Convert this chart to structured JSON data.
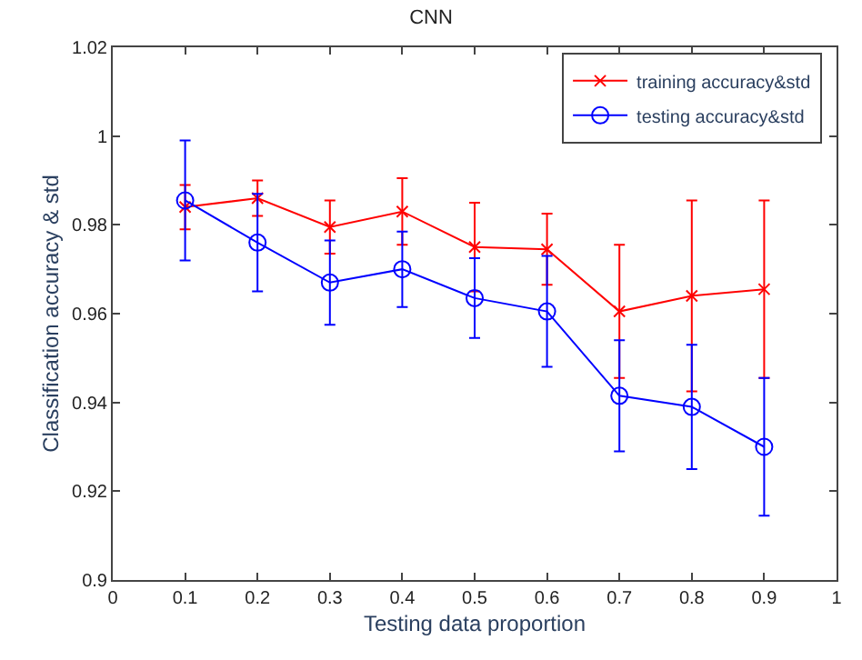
{
  "chart_data": {
    "type": "line",
    "title": "CNN",
    "xlabel": "Testing data proportion",
    "ylabel": "Classification accuracy & std",
    "x": [
      0.1,
      0.2,
      0.3,
      0.4,
      0.5,
      0.6,
      0.7,
      0.8,
      0.9
    ],
    "series": [
      {
        "name": "training accuracy&std",
        "color": "#ff0000",
        "marker": "cross",
        "values": [
          0.984,
          0.986,
          0.9795,
          0.983,
          0.975,
          0.9745,
          0.9605,
          0.964,
          0.9655
        ],
        "errors": [
          0.005,
          0.004,
          0.006,
          0.0075,
          0.01,
          0.008,
          0.015,
          0.0215,
          0.02
        ]
      },
      {
        "name": "testing accuracy&std",
        "color": "#0000ff",
        "marker": "circle",
        "values": [
          0.9855,
          0.976,
          0.967,
          0.97,
          0.9635,
          0.9605,
          0.9415,
          0.939,
          0.93
        ],
        "errors": [
          0.0135,
          0.011,
          0.0095,
          0.0085,
          0.009,
          0.0125,
          0.0125,
          0.014,
          0.0155
        ]
      }
    ],
    "xlim": [
      0,
      1
    ],
    "xticks": [
      0,
      0.1,
      0.2,
      0.3,
      0.4,
      0.5,
      0.6,
      0.7,
      0.8,
      0.9,
      1
    ],
    "ylim": [
      0.9,
      1.02
    ],
    "yticks": [
      0.9,
      0.92,
      0.94,
      0.96,
      0.98,
      1,
      1.02
    ],
    "legend": "top right",
    "line_style": "solid"
  }
}
